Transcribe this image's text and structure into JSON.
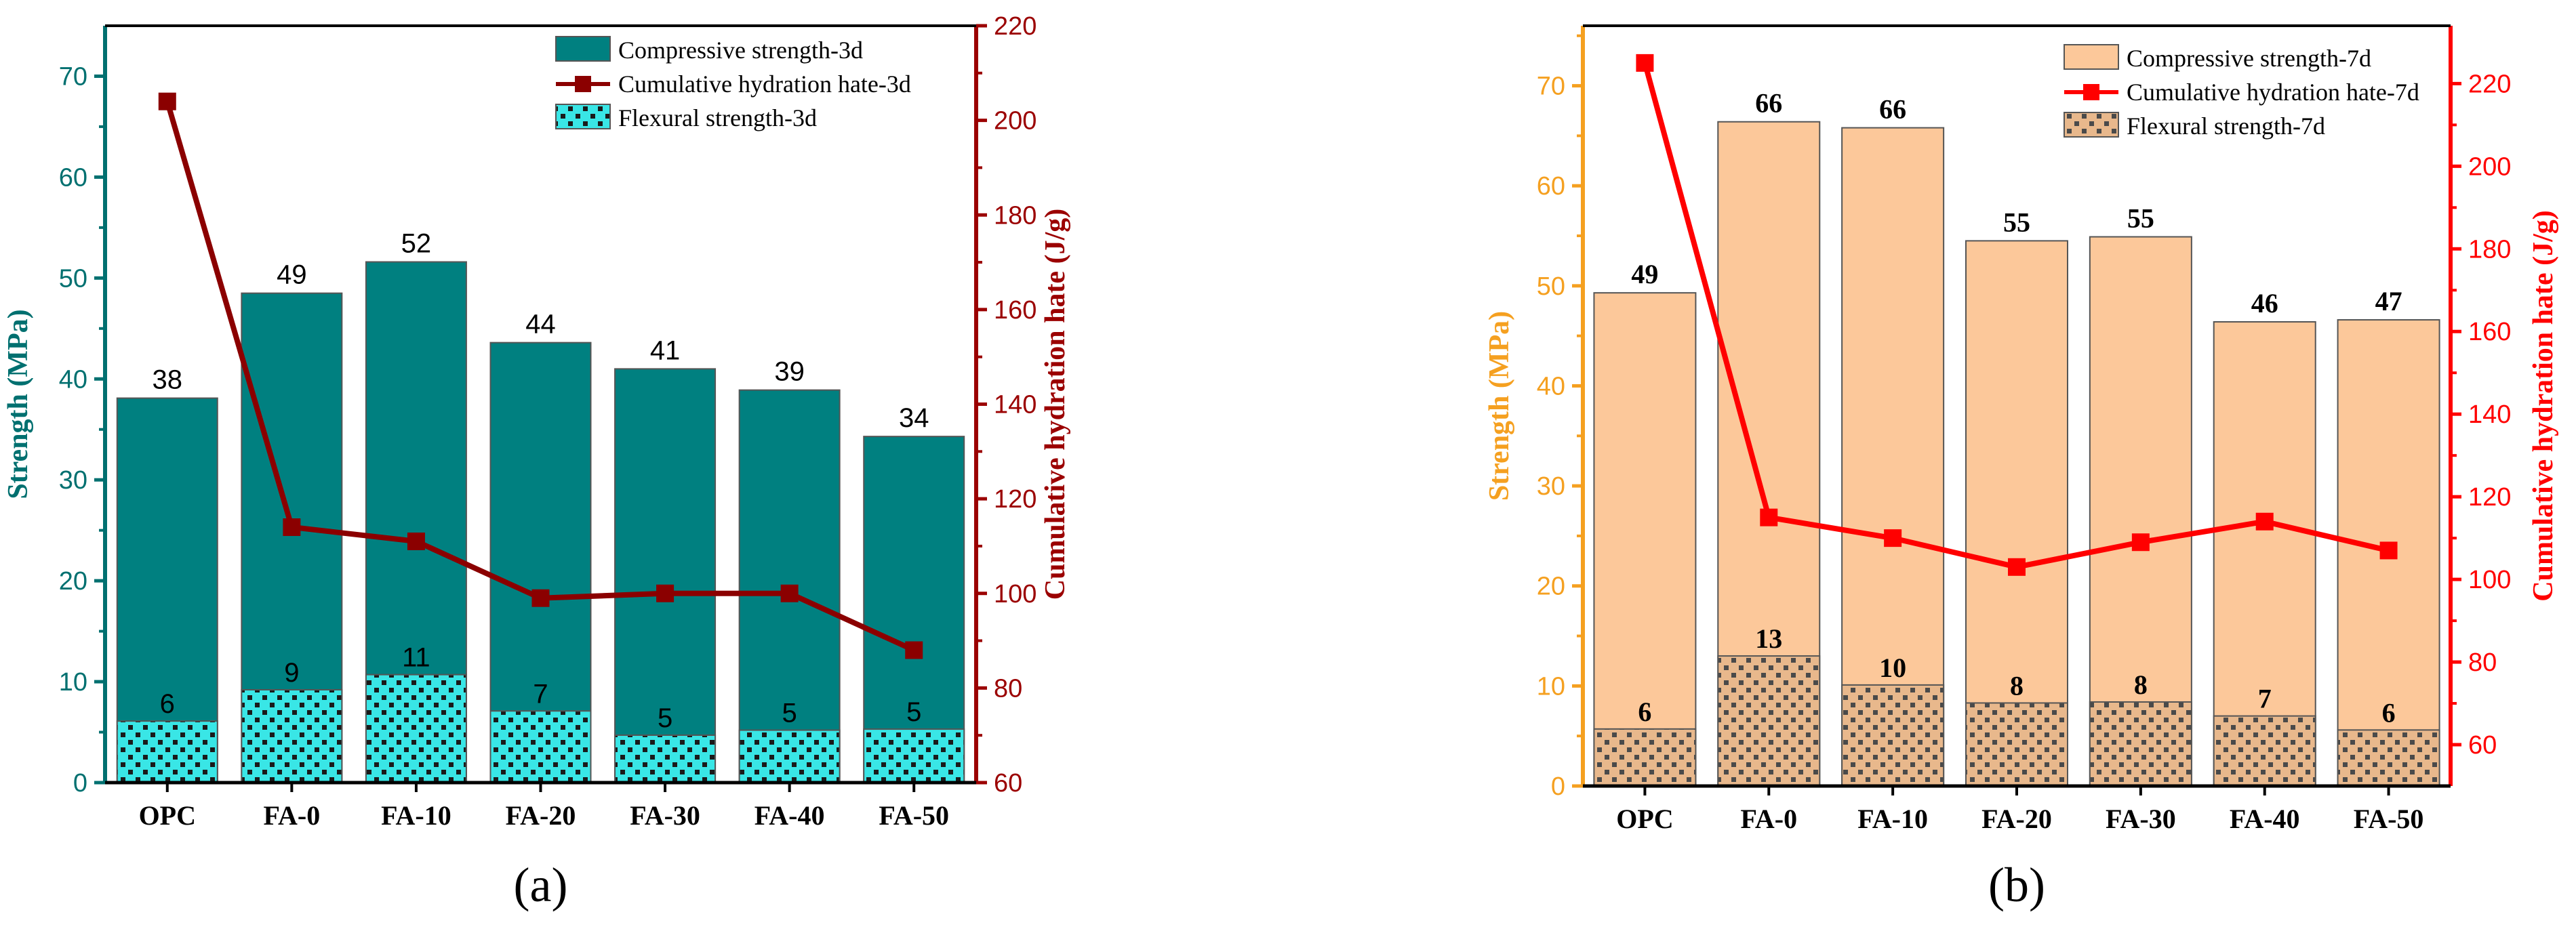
{
  "chart_data": [
    {
      "type": "bar",
      "panel_label": "(a)",
      "categories": [
        "OPC",
        "FA-0",
        "FA-10",
        "FA-20",
        "FA-30",
        "FA-40",
        "FA-50"
      ],
      "ylabel": "Strength (MPa)",
      "y2label": "Cumulative hydration hate (J/g)",
      "ylim": [
        0,
        75
      ],
      "y2lim": [
        60,
        220
      ],
      "yticks": [
        0,
        10,
        20,
        30,
        40,
        50,
        60,
        70
      ],
      "y2ticks": [
        60,
        80,
        100,
        120,
        140,
        160,
        180,
        200,
        220
      ],
      "legend_position": "top-right",
      "series": [
        {
          "name": "Compressive strength-3d",
          "kind": "bar",
          "values": [
            38.1,
            48.5,
            51.6,
            43.6,
            41.0,
            38.9,
            34.3
          ],
          "labels": [
            "38",
            "49",
            "52",
            "44",
            "41",
            "39",
            "34"
          ]
        },
        {
          "name": "Cumulative hydration hate-3d",
          "kind": "line",
          "axis": "right",
          "values": [
            204,
            114,
            111,
            99,
            100,
            100,
            88
          ]
        },
        {
          "name": "Flexural strength-3d",
          "kind": "bar",
          "values": [
            6.1,
            9.2,
            10.7,
            7.1,
            4.7,
            5.2,
            5.3
          ],
          "labels": [
            "6",
            "9",
            "11",
            "7",
            "5",
            "5",
            "5"
          ]
        }
      ],
      "colors": {
        "primary": "#008080",
        "line": "#8b0000",
        "right_axis": "#9b0000",
        "flexural": "#39e6e6",
        "axis_left": "#007070"
      }
    },
    {
      "type": "bar",
      "panel_label": "(b)",
      "categories": [
        "OPC",
        "FA-0",
        "FA-10",
        "FA-20",
        "FA-30",
        "FA-40",
        "FA-50"
      ],
      "ylabel": "Strength (MPa)",
      "y2label": "Cumulative hydration hate (J/g)",
      "ylim": [
        0,
        76
      ],
      "y2lim": [
        50,
        234
      ],
      "yticks": [
        0,
        10,
        20,
        30,
        40,
        50,
        60,
        70
      ],
      "y2ticks": [
        60,
        80,
        100,
        120,
        140,
        160,
        180,
        200,
        220
      ],
      "legend_position": "top-right",
      "series": [
        {
          "name": "Compressive strength-7d",
          "kind": "bar",
          "values": [
            49.3,
            66.4,
            65.8,
            54.5,
            54.9,
            46.4,
            46.6
          ],
          "labels": [
            "49",
            "66",
            "66",
            "55",
            "55",
            "46",
            "47"
          ]
        },
        {
          "name": "Cumulative hydration hate-7d",
          "kind": "line",
          "axis": "right",
          "values": [
            225,
            115,
            110,
            103,
            109,
            114,
            107
          ]
        },
        {
          "name": "Flexural strength-7d",
          "kind": "bar",
          "values": [
            5.7,
            13.0,
            10.1,
            8.3,
            8.4,
            7.0,
            5.6
          ],
          "labels": [
            "6",
            "13",
            "10",
            "8",
            "8",
            "7",
            "6"
          ]
        }
      ],
      "colors": {
        "primary": "#fcc89a",
        "line": "#ff0000",
        "right_axis": "#ff0000",
        "flexural": "#e8b88c",
        "axis_left": "#f5a020"
      }
    }
  ]
}
